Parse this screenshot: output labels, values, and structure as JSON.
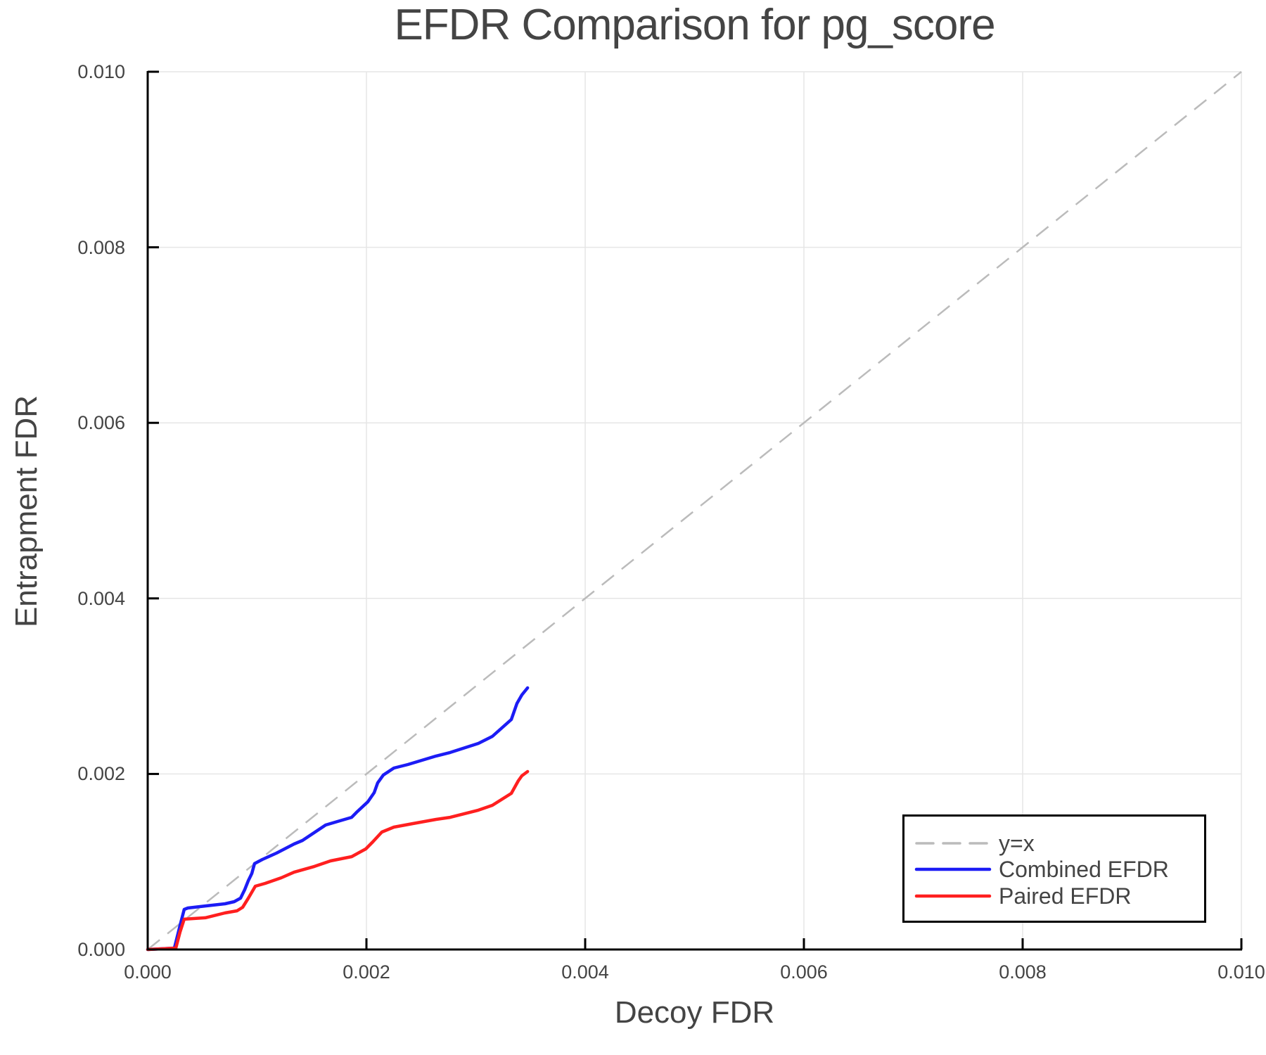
{
  "chart_data": {
    "type": "line",
    "title": "EFDR Comparison for pg_score",
    "xlabel": "Decoy FDR",
    "ylabel": "Entrapment FDR",
    "xlim": [
      0.0,
      0.01
    ],
    "ylim": [
      0.0,
      0.01
    ],
    "x_ticks": [
      "0.000",
      "0.002",
      "0.004",
      "0.006",
      "0.008",
      "0.010"
    ],
    "y_ticks": [
      "0.000",
      "0.002",
      "0.004",
      "0.006",
      "0.008",
      "0.010"
    ],
    "x_tick_values": [
      0.0,
      0.002,
      0.004,
      0.006,
      0.008,
      0.01
    ],
    "y_tick_values": [
      0.0,
      0.002,
      0.004,
      0.006,
      0.008,
      0.01
    ],
    "grid": true,
    "legend_position": "lower right",
    "series": [
      {
        "name": "y=x",
        "color": "#bbbbbb",
        "style": "dashed",
        "x": [
          0.0,
          0.01
        ],
        "y": [
          0.0,
          0.01
        ]
      },
      {
        "name": "Combined EFDR",
        "color": "#1c1cf5",
        "style": "solid",
        "x": [
          0.0,
          0.000244,
          0.000289,
          0.000334,
          0.000367,
          0.000534,
          0.000707,
          0.000791,
          0.000849,
          0.000887,
          0.00092,
          0.000952,
          0.000977,
          0.001048,
          0.001177,
          0.001338,
          0.001415,
          0.001627,
          0.001736,
          0.001865,
          0.00191,
          0.002013,
          0.002071,
          0.002103,
          0.002154,
          0.002251,
          0.002379,
          0.002637,
          0.002765,
          0.003023,
          0.003151,
          0.003325,
          0.003376,
          0.003421,
          0.003473
        ],
        "y": [
          0.0,
          1.6e-05,
          0.00024,
          0.000457,
          0.000473,
          0.000497,
          0.000521,
          0.000545,
          0.000585,
          0.000681,
          0.000785,
          0.000865,
          0.000978,
          0.001026,
          0.001098,
          0.001202,
          0.001242,
          0.001418,
          0.001458,
          0.001506,
          0.001563,
          0.001683,
          0.001787,
          0.001899,
          0.001987,
          0.002067,
          0.002107,
          0.002204,
          0.002244,
          0.002348,
          0.002428,
          0.00262,
          0.002804,
          0.002901,
          0.002981
        ]
      },
      {
        "name": "Paired EFDR",
        "color": "#ff1f1f",
        "style": "solid",
        "x": [
          0.0,
          0.000257,
          0.000296,
          0.000334,
          0.000527,
          0.000707,
          0.000817,
          0.000868,
          0.00092,
          0.000965,
          0.000984,
          0.001074,
          0.001222,
          0.001338,
          0.001524,
          0.001672,
          0.001865,
          0.001994,
          0.002058,
          0.002141,
          0.002251,
          0.002424,
          0.002637,
          0.002765,
          0.003023,
          0.003151,
          0.003325,
          0.003389,
          0.003421,
          0.003473
        ],
        "y": [
          0.0,
          1.6e-05,
          0.0002,
          0.000345,
          0.000361,
          0.000417,
          0.000441,
          0.000481,
          0.000585,
          0.000681,
          0.000721,
          0.000753,
          0.000817,
          0.000881,
          0.000946,
          0.00101,
          0.001058,
          0.001146,
          0.001226,
          0.001338,
          0.001394,
          0.001434,
          0.001482,
          0.001506,
          0.001587,
          0.001643,
          0.001779,
          0.001923,
          0.001979,
          0.002027
        ]
      }
    ]
  },
  "colors": {
    "text": "#444444",
    "axis": "#000000",
    "grid": "#e6e6e6",
    "background": "#ffffff"
  },
  "legend": {
    "items": [
      {
        "label": "y=x"
      },
      {
        "label": "Combined EFDR"
      },
      {
        "label": "Paired EFDR"
      }
    ]
  }
}
